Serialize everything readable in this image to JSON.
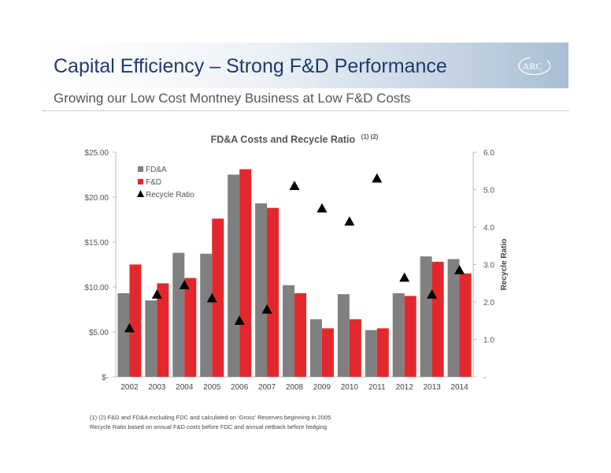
{
  "header": {
    "title": "Capital Efficiency – Strong F&D Performance",
    "subtitle": "Growing our Low Cost Montney Business at Low F&D Costs",
    "logo_text": "ARC"
  },
  "footnotes": [
    "(1) (2)  F&D and FD&A excluding FDC and calculated on ‘Gross’ Reserves beginning in 2005",
    "Recycle Ratio based on annual F&D costs before FDC and annual netback before hedging"
  ],
  "chart_data": {
    "type": "bar",
    "title": "FD&A Costs and Recycle Ratio",
    "title_superscript": "(1) (2)",
    "categories": [
      "2002",
      "2003",
      "2004",
      "2005",
      "2006",
      "2007",
      "2008",
      "2009",
      "2010",
      "2011",
      "2012",
      "2013",
      "2014"
    ],
    "series": [
      {
        "name": "FD&A",
        "type": "bar",
        "axis": "left",
        "color": "#808080",
        "values": [
          9.3,
          8.5,
          13.8,
          13.7,
          22.5,
          19.3,
          10.2,
          6.4,
          9.2,
          5.2,
          9.3,
          13.4,
          13.1
        ]
      },
      {
        "name": "F&D",
        "type": "bar",
        "axis": "left",
        "color": "#e2282c",
        "values": [
          12.5,
          10.4,
          11.0,
          17.6,
          23.1,
          18.8,
          9.3,
          5.4,
          6.4,
          5.4,
          9.0,
          12.8,
          11.5
        ]
      },
      {
        "name": "Recycle Ratio",
        "type": "scatter",
        "axis": "right",
        "marker": "triangle",
        "color": "#000000",
        "values": [
          1.3,
          2.2,
          2.45,
          2.1,
          1.5,
          1.8,
          5.1,
          4.5,
          4.15,
          5.3,
          2.65,
          2.2,
          2.85
        ]
      }
    ],
    "y_left": {
      "min": 0,
      "max": 25,
      "ticks": [
        0,
        5,
        10,
        15,
        20,
        25
      ],
      "tick_labels": [
        "$-",
        "$5.00",
        "$10.00",
        "$15.00",
        "$20.00",
        "$25.00"
      ]
    },
    "y_right": {
      "min": 0,
      "max": 6,
      "label": "Recycle Ratio",
      "ticks": [
        0,
        1,
        2,
        3,
        4,
        5,
        6
      ],
      "tick_labels": [
        "-",
        "1.0",
        "2.0",
        "3.0",
        "4.0",
        "5.0",
        "6.0"
      ]
    },
    "grid": false,
    "legend_position": "top-left"
  }
}
